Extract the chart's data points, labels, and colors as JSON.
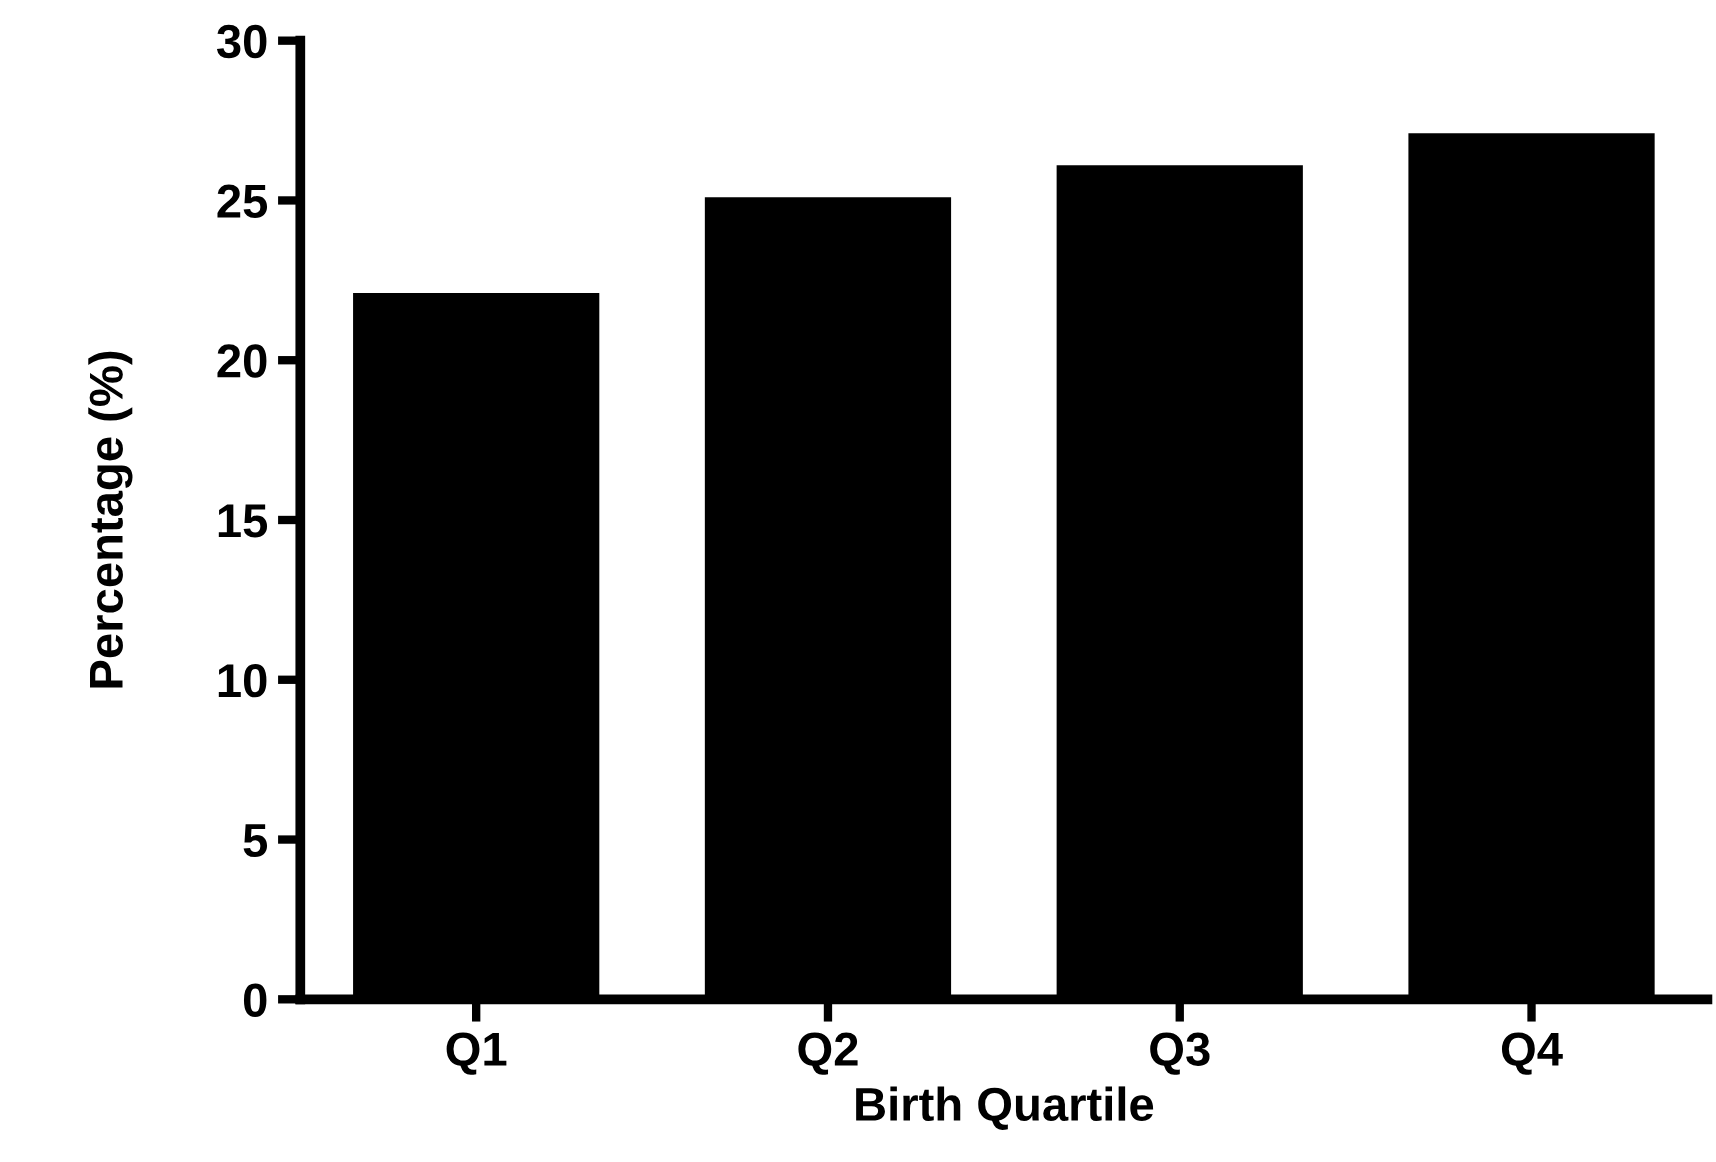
{
  "chart_data": {
    "type": "bar",
    "xlabel": "Birth Quartile",
    "ylabel": "Percentage (%)",
    "categories": [
      "Q1",
      "Q2",
      "Q3",
      "Q4"
    ],
    "values": [
      22.1,
      25.1,
      26.1,
      27.1
    ],
    "color": "#000000",
    "ylim": [
      0,
      30
    ],
    "yticks": [
      0,
      5,
      10,
      15,
      20,
      25,
      30
    ],
    "grid": false
  }
}
